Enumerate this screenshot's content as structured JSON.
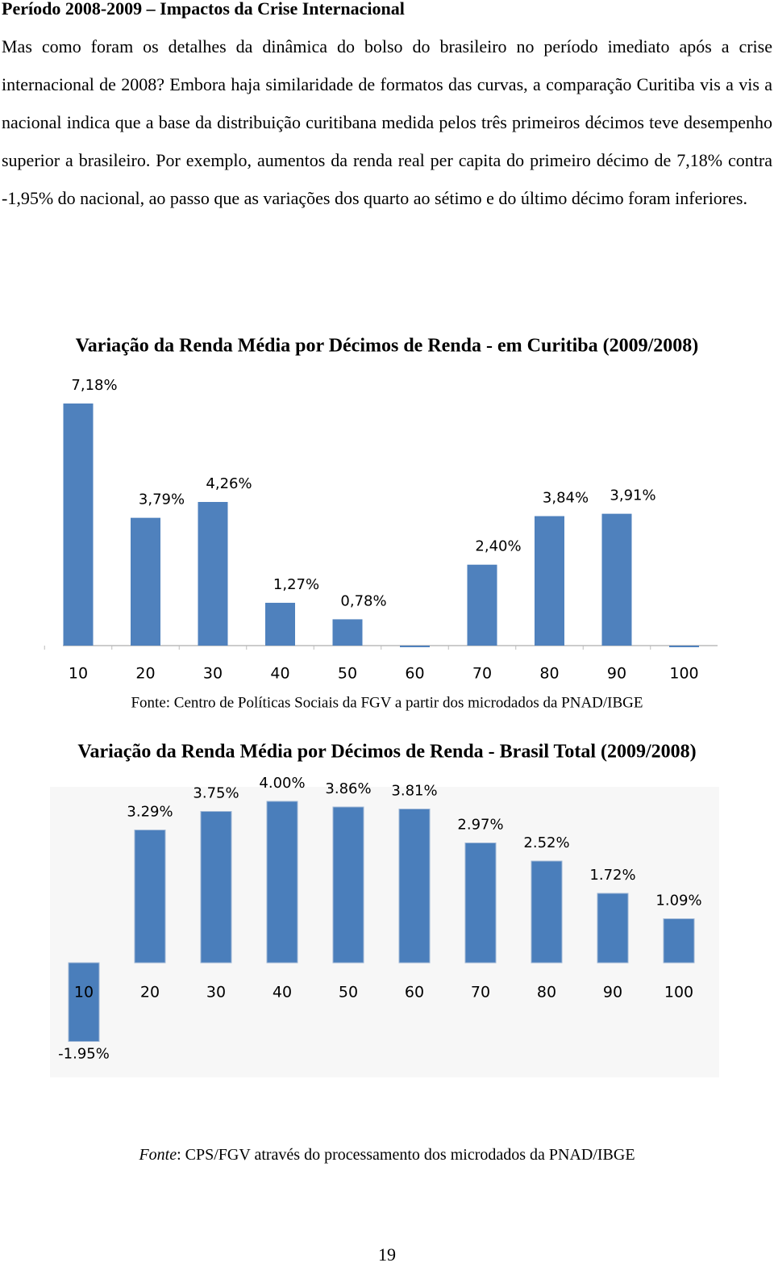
{
  "heading": "Período 2008-2009 – Impactos da Crise Internacional",
  "paragraph": "Mas como foram os detalhes da dinâmica do bolso do brasileiro no período imediato após a crise internacional de 2008? Embora haja similaridade de formatos das curvas, a comparação Curitiba vis a vis a nacional indica que a base da distribuição curitibana medida pelos três primeiros décimos teve desempenho superior a brasileiro. Por exemplo, aumentos da renda real per capita do primeiro décimo de 7,18% contra -1,95% do nacional, ao passo que as variações dos quarto ao sétimo e do último décimo foram inferiores.",
  "chart_data": [
    {
      "type": "bar",
      "title": "Variação da Renda Média por Décimos de Renda - em Curitiba (2009/2008)",
      "categories": [
        "10",
        "20",
        "30",
        "40",
        "50",
        "60",
        "70",
        "80",
        "90",
        "100"
      ],
      "values": [
        7.18,
        3.79,
        4.26,
        1.27,
        0.78,
        0,
        2.4,
        3.84,
        3.91,
        0
      ],
      "value_labels": [
        "7,18%",
        "3,79%",
        "4,26%",
        "1,27%",
        "0,78%",
        null,
        "2,40%",
        "3,84%",
        "3,91%",
        null
      ],
      "color": "#4f81bd",
      "source": "Fonte: Centro de Políticas Sociais da FGV a partir dos microdados da PNAD/IBGE"
    },
    {
      "type": "bar",
      "title": "Variação da Renda Média por Décimos de Renda - Brasil Total (2009/2008)",
      "categories": [
        "10",
        "20",
        "30",
        "40",
        "50",
        "60",
        "70",
        "80",
        "90",
        "100"
      ],
      "values": [
        -1.95,
        3.29,
        3.75,
        4.0,
        3.86,
        3.81,
        2.97,
        2.52,
        1.72,
        1.09
      ],
      "value_labels": [
        "-1.95%",
        "3.29%",
        "3.75%",
        "4.00%",
        "3.86%",
        "3.81%",
        "2.97%",
        "2.52%",
        "1.72%",
        "1.09%"
      ],
      "color": "#4a7ebb"
    }
  ],
  "footnote": {
    "label": "Fonte",
    "text": ": CPS/FGV através do processamento dos microdados da PNAD/IBGE"
  },
  "page_number": "19"
}
